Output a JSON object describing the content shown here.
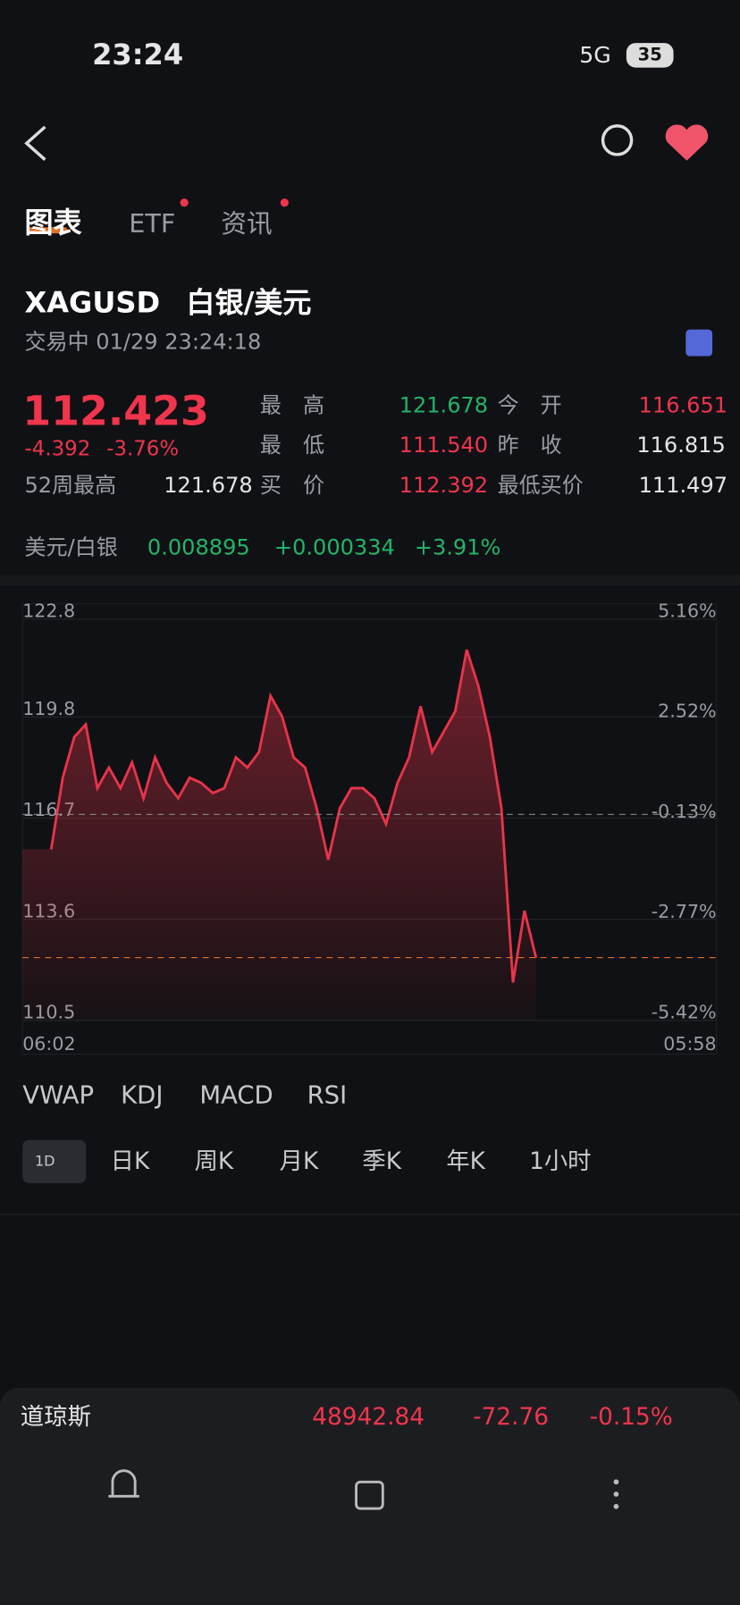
{
  "status_bar": {
    "time": "23:24",
    "network": "5G",
    "battery": "35"
  },
  "tabs": [
    "图表",
    "ETF",
    "资讯"
  ],
  "instrument": {
    "symbol": "XAGUSD",
    "name": "白银/美元",
    "status": "交易中 01/29 23:24:18"
  },
  "quote": {
    "price": 112.423,
    "change": "-4.392",
    "change_pct": "-3.76%",
    "high_label": "最　高",
    "high": "121.678",
    "open_label": "今　开",
    "open": "116.651",
    "low_label": "最　低",
    "low": "111.540",
    "prev_close_label": "昨　收",
    "prev_close": 116.815,
    "week52_label": "52周最高",
    "week52_high": "121.678",
    "bid_label": "买　价",
    "bid": "112.392",
    "min_bid_label": "最低买价",
    "min_bid": "111.497"
  },
  "conversion": {
    "label": "美元/白银",
    "value": "0.008895",
    "change": "+0.000334",
    "change_pct": "+3.91%"
  },
  "chart_data": {
    "type": "line",
    "color": "#e8344a",
    "ylim": [
      110.5,
      122.8
    ],
    "yticks": [
      122.8,
      119.8,
      116.7,
      113.6,
      110.5
    ],
    "y2lim": [
      -5.42,
      5.16
    ],
    "y2ticks": [
      {
        "value": 5.16,
        "label": "5.16%"
      },
      {
        "value": 2.52,
        "label": "2.52%"
      },
      {
        "value": -0.13,
        "label": "-0.13%"
      },
      {
        "value": -2.77,
        "label": "-2.77%"
      },
      {
        "value": -5.42,
        "label": "-5.42%"
      }
    ],
    "x_labels": [
      "06:02",
      "05:58"
    ],
    "values": [
      115.74,
      117.94,
      119.19,
      119.57,
      117.62,
      118.25,
      117.62,
      118.41,
      117.31,
      118.56,
      117.78,
      117.31,
      117.94,
      117.78,
      117.47,
      117.62,
      118.56,
      118.25,
      118.72,
      120.45,
      119.82,
      118.56,
      118.25,
      117.0,
      115.43,
      117.0,
      117.62,
      117.62,
      117.31,
      116.52,
      117.78,
      118.56,
      120.13,
      118.72,
      119.35,
      119.98,
      121.86,
      120.76,
      119.19,
      117.0,
      111.66,
      113.86,
      112.42
    ]
  },
  "indicators": [
    "VWAP",
    "KDJ",
    "MACD",
    "RSI"
  ],
  "periods": [
    "1D",
    "日K",
    "周K",
    "月K",
    "季K",
    "年K",
    "1小时"
  ],
  "ticker": {
    "name": "道琼斯",
    "price": "48942.84",
    "change": "-72.76",
    "change_pct": "-0.15%"
  }
}
